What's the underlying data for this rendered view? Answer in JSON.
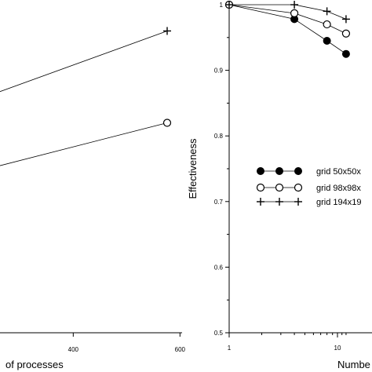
{
  "chart_data": [
    {
      "type": "line",
      "panel": "left",
      "xlabel": "of processes",
      "ylabel": "",
      "x_ticks": [
        400,
        600
      ],
      "x_tick_labels": [
        "400",
        "600"
      ],
      "series": [
        {
          "marker": "plus",
          "x": [
            0,
            576
          ],
          "y": [
            0.79,
            0.96
          ]
        },
        {
          "marker": "open-circle",
          "x": [
            0,
            576
          ],
          "y": [
            0.7,
            0.82
          ]
        }
      ]
    },
    {
      "type": "line",
      "panel": "right",
      "xlabel": "Numbe",
      "ylabel": "Effectiveness",
      "x_scale": "log",
      "x_ticks": [
        1,
        10
      ],
      "x_tick_labels": [
        "1",
        "10"
      ],
      "ylim": [
        0.5,
        1.0
      ],
      "y_ticks": [
        0.5,
        0.6,
        0.7,
        0.8,
        0.9,
        1.0
      ],
      "y_tick_labels": [
        "0.5",
        "0.6",
        "0.7",
        "0.8",
        "0.9",
        "1"
      ],
      "legend": {
        "placement": "right",
        "entries": [
          "grid 50x50x",
          "grid 98x98x",
          "grid 194x19"
        ]
      },
      "series": [
        {
          "name": "grid 50x50x",
          "marker": "filled-circle",
          "x": [
            1,
            4,
            8,
            12
          ],
          "y": [
            1.0,
            0.978,
            0.945,
            0.925
          ]
        },
        {
          "name": "grid 98x98x",
          "marker": "open-circle",
          "x": [
            1,
            4,
            8,
            12
          ],
          "y": [
            1.0,
            0.987,
            0.97,
            0.956
          ]
        },
        {
          "name": "grid 194x19",
          "marker": "plus",
          "x": [
            1,
            4,
            8,
            12
          ],
          "y": [
            1.0,
            1.0,
            0.99,
            0.978
          ]
        }
      ]
    }
  ]
}
